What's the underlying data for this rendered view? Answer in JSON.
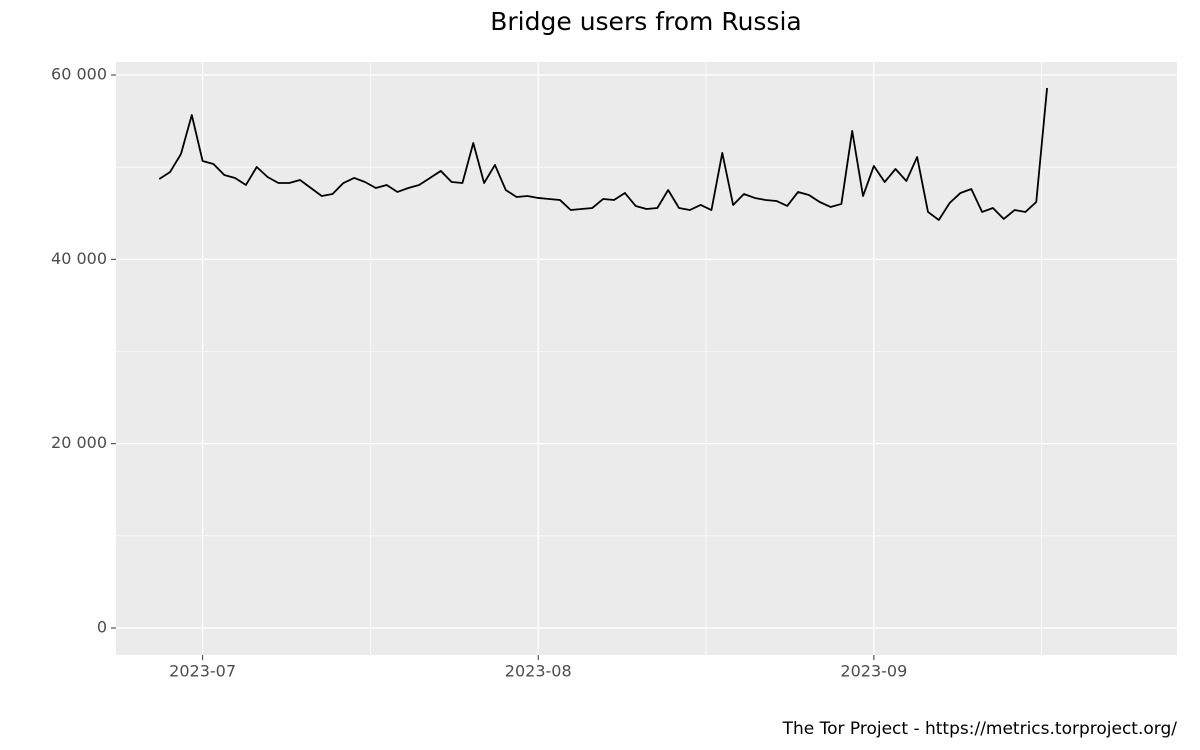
{
  "chart_data": {
    "type": "line",
    "title": "Bridge users from Russia",
    "caption": "The Tor Project - https://metrics.torproject.org/",
    "color": "#000000",
    "grid": true,
    "x": [
      "2023-06-27",
      "2023-06-28",
      "2023-06-29",
      "2023-06-30",
      "2023-07-01",
      "2023-07-02",
      "2023-07-03",
      "2023-07-04",
      "2023-07-05",
      "2023-07-06",
      "2023-07-07",
      "2023-07-08",
      "2023-07-09",
      "2023-07-10",
      "2023-07-11",
      "2023-07-12",
      "2023-07-13",
      "2023-07-14",
      "2023-07-15",
      "2023-07-16",
      "2023-07-17",
      "2023-07-18",
      "2023-07-19",
      "2023-07-20",
      "2023-07-21",
      "2023-07-22",
      "2023-07-23",
      "2023-07-24",
      "2023-07-25",
      "2023-07-26",
      "2023-07-27",
      "2023-07-28",
      "2023-07-29",
      "2023-07-30",
      "2023-07-31",
      "2023-08-01",
      "2023-08-02",
      "2023-08-03",
      "2023-08-04",
      "2023-08-05",
      "2023-08-06",
      "2023-08-07",
      "2023-08-08",
      "2023-08-09",
      "2023-08-10",
      "2023-08-11",
      "2023-08-12",
      "2023-08-13",
      "2023-08-14",
      "2023-08-15",
      "2023-08-16",
      "2023-08-17",
      "2023-08-18",
      "2023-08-19",
      "2023-08-20",
      "2023-08-21",
      "2023-08-22",
      "2023-08-23",
      "2023-08-24",
      "2023-08-25",
      "2023-08-26",
      "2023-08-27",
      "2023-08-28",
      "2023-08-29",
      "2023-08-30",
      "2023-08-31",
      "2023-09-01",
      "2023-09-02",
      "2023-09-03",
      "2023-09-04",
      "2023-09-05",
      "2023-09-06",
      "2023-09-07",
      "2023-09-08",
      "2023-09-09",
      "2023-09-10",
      "2023-09-11",
      "2023-09-12",
      "2023-09-13",
      "2023-09-14",
      "2023-09-15",
      "2023-09-16",
      "2023-09-17"
    ],
    "values": [
      48720,
      49480,
      51430,
      55660,
      50670,
      50340,
      49150,
      48830,
      48070,
      50020,
      48930,
      48280,
      48280,
      48610,
      47740,
      46870,
      47090,
      48280,
      48830,
      48390,
      47740,
      48070,
      47310,
      47740,
      48070,
      48830,
      49590,
      48390,
      48280,
      52620,
      48280,
      50240,
      47520,
      46760,
      46870,
      46660,
      46550,
      46440,
      45350,
      45460,
      45570,
      46550,
      46440,
      47200,
      45790,
      45460,
      45570,
      47520,
      45570,
      45350,
      45900,
      45350,
      51540,
      45900,
      47090,
      46660,
      46440,
      46330,
      45790,
      47310,
      46980,
      46220,
      45680,
      46010,
      53930,
      46870,
      50130,
      48390,
      49800,
      48500,
      51100,
      45140,
      44270,
      46110,
      47200,
      47630,
      45140,
      45570,
      44380,
      45350,
      45140,
      46220,
      58590
    ],
    "xlim": [
      "2023-06-23",
      "2023-09-29"
    ],
    "xticks": [
      {
        "value": "2023-07-01",
        "label": "2023-07"
      },
      {
        "value": "2023-08-01",
        "label": "2023-08"
      },
      {
        "value": "2023-09-01",
        "label": "2023-09"
      }
    ],
    "ylim": [
      -2930,
      61410
    ],
    "yticks": [
      0,
      {
        "value": 20000,
        "label": "20 000"
      },
      {
        "value": 40000,
        "label": "40 000"
      },
      {
        "value": 60000,
        "label": "60 000"
      }
    ]
  }
}
